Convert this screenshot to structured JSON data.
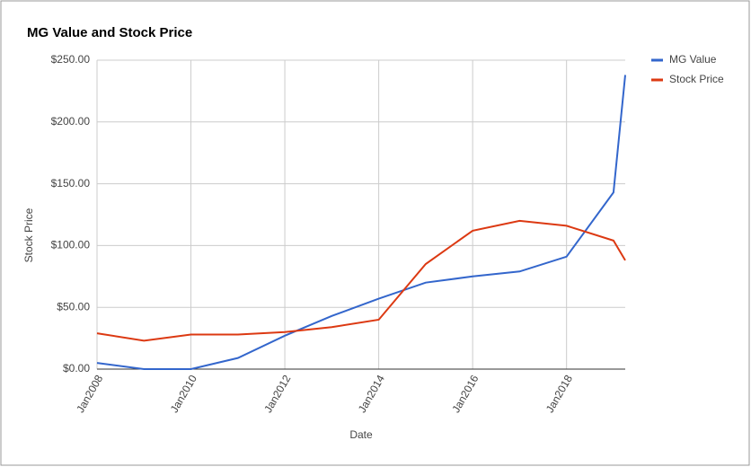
{
  "chart_data": {
    "type": "line",
    "title": "MG Value and Stock Price",
    "x_label": "Date",
    "y_label": "Stock Price",
    "x": [
      "2008-01",
      "2009-01",
      "2010-01",
      "2011-01",
      "2012-01",
      "2013-01",
      "2014-01",
      "2015-01",
      "2016-01",
      "2017-01",
      "2018-01",
      "2019-01",
      "2019-04"
    ],
    "series": [
      {
        "name": "MG Value",
        "color": "#3366cc",
        "values": [
          5,
          0,
          0,
          9,
          27,
          43,
          57,
          70,
          75,
          79,
          91,
          143,
          238
        ]
      },
      {
        "name": "Stock Price",
        "color": "#dc3912",
        "values": [
          29,
          23,
          28,
          28,
          30,
          34,
          40,
          85,
          112,
          120,
          116,
          104,
          88
        ]
      }
    ],
    "xlim": [
      "2008-01",
      "2019-04"
    ],
    "xticks": [
      {
        "value": "2008-01",
        "label": "Jan2008"
      },
      {
        "value": "2010-01",
        "label": "Jan2010"
      },
      {
        "value": "2012-01",
        "label": "Jan2012"
      },
      {
        "value": "2014-01",
        "label": "Jan2014"
      },
      {
        "value": "2016-01",
        "label": "Jan2016"
      },
      {
        "value": "2018-01",
        "label": "Jan2018"
      }
    ],
    "ylim": [
      0,
      250
    ],
    "yticks": [
      {
        "value": 0,
        "label": "$0.00"
      },
      {
        "value": 50,
        "label": "$50.00"
      },
      {
        "value": 100,
        "label": "$100.00"
      },
      {
        "value": 150,
        "label": "$150.00"
      },
      {
        "value": 200,
        "label": "$200.00"
      },
      {
        "value": 250,
        "label": "$250.00"
      }
    ],
    "grid": true,
    "legend": "right"
  }
}
